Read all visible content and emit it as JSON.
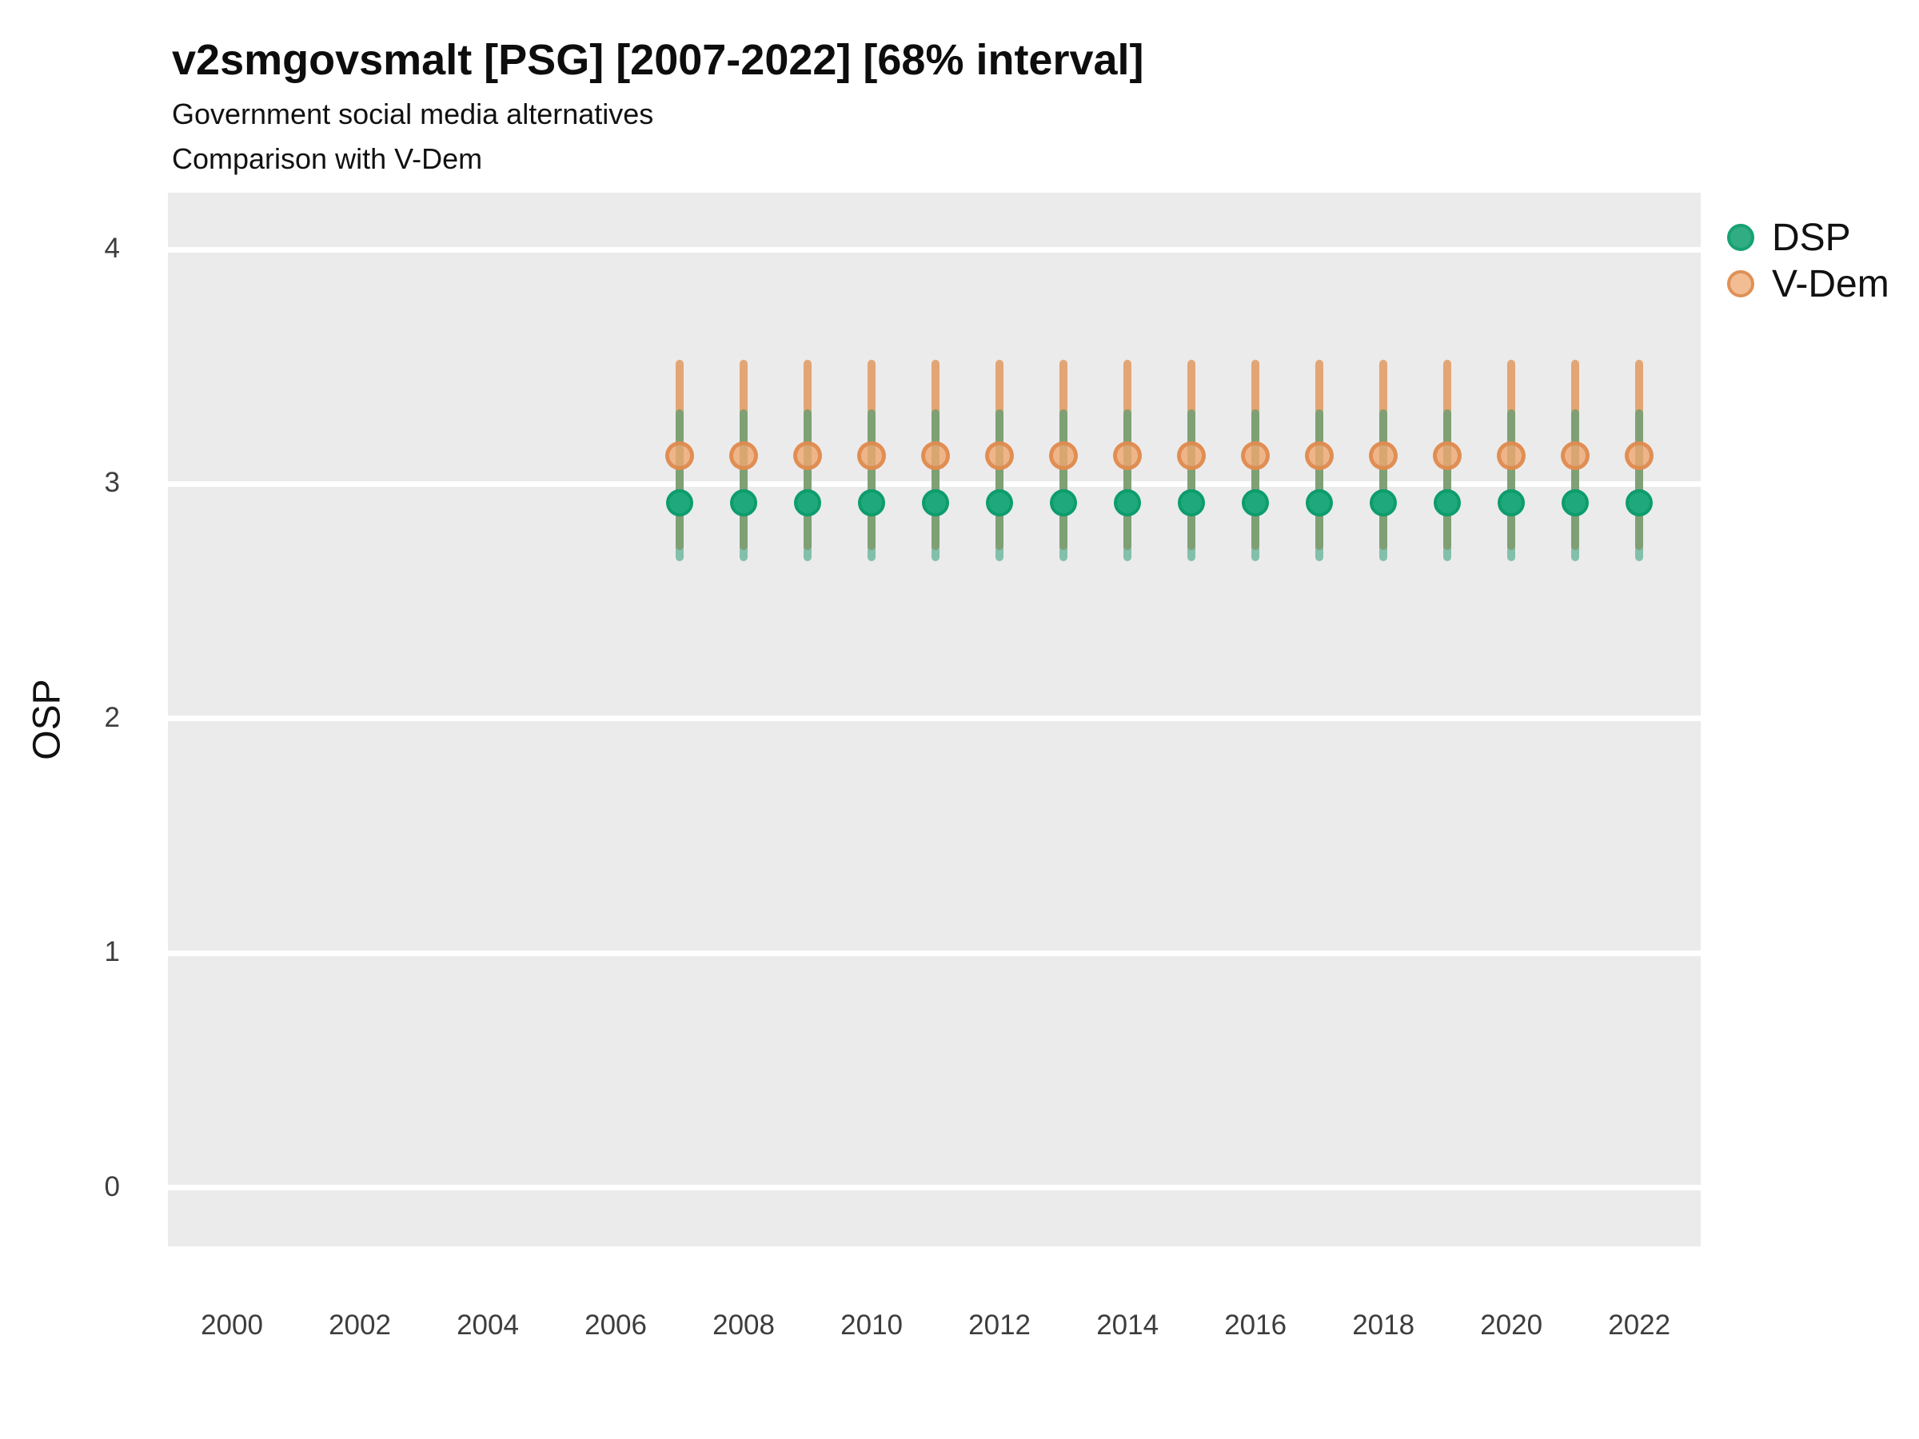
{
  "title": "v2smgovsmalt [PSG] [2007-2022] [68% interval]",
  "subtitle1": "Government social media alternatives",
  "subtitle2": "Comparison with V-Dem",
  "y_axis_label": "OSP",
  "legend": {
    "position": "right",
    "items": [
      {
        "label": "DSP",
        "fill": "#30AD82",
        "stroke": "#17A175"
      },
      {
        "label": "V-Dem",
        "fill": "#F2BD93",
        "stroke": "#DF9156"
      }
    ]
  },
  "colors": {
    "panel_bg": "#EBEBEB",
    "gridline": "#FFFFFF",
    "tick_label": "#3D3D3D",
    "dsp_bar": "#2E9C77",
    "dsp_bar_alpha": 0.55,
    "vdem_bar": "#E29D66",
    "vdem_bar_alpha": 0.9,
    "dsp_point_fill": "#1FA87C",
    "dsp_point_stroke": "#0D9C6D",
    "vdem_point_fill": "#EFA770",
    "vdem_point_fill_alpha": 0.8,
    "vdem_point_stroke": "#DE8A4E",
    "vdem_point_stroke_alpha": 0.9
  },
  "chart_data": {
    "type": "pointrange",
    "interval": "68%",
    "title": "v2smgovsmalt [PSG] [2007-2022] [68% interval]",
    "xlabel": "",
    "ylabel": "OSP",
    "x": [
      2007,
      2008,
      2009,
      2010,
      2011,
      2012,
      2013,
      2014,
      2015,
      2016,
      2017,
      2018,
      2019,
      2020,
      2021,
      2022
    ],
    "series": [
      {
        "name": "DSP",
        "points": [
          2.92,
          2.92,
          2.92,
          2.92,
          2.92,
          2.92,
          2.92,
          2.92,
          2.92,
          2.92,
          2.92,
          2.92,
          2.92,
          2.92,
          2.92,
          2.92
        ],
        "lower": [
          2.67,
          2.67,
          2.67,
          2.67,
          2.67,
          2.67,
          2.67,
          2.67,
          2.67,
          2.67,
          2.67,
          2.67,
          2.67,
          2.67,
          2.67,
          2.67
        ],
        "upper": [
          3.32,
          3.32,
          3.32,
          3.32,
          3.32,
          3.32,
          3.32,
          3.32,
          3.32,
          3.32,
          3.32,
          3.32,
          3.32,
          3.32,
          3.32,
          3.32
        ]
      },
      {
        "name": "V-Dem",
        "points": [
          3.12,
          3.12,
          3.12,
          3.12,
          3.12,
          3.12,
          3.12,
          3.12,
          3.12,
          3.12,
          3.12,
          3.12,
          3.12,
          3.12,
          3.12,
          3.12
        ],
        "lower": [
          2.72,
          2.72,
          2.72,
          2.72,
          2.72,
          2.72,
          2.72,
          2.72,
          2.72,
          2.72,
          2.72,
          2.72,
          2.72,
          2.72,
          2.72,
          2.72
        ],
        "upper": [
          3.53,
          3.53,
          3.53,
          3.53,
          3.53,
          3.53,
          3.53,
          3.53,
          3.53,
          3.53,
          3.53,
          3.53,
          3.53,
          3.53,
          3.53,
          3.53
        ]
      }
    ],
    "x_ticks": [
      2000,
      2002,
      2004,
      2006,
      2008,
      2010,
      2012,
      2014,
      2016,
      2018,
      2020,
      2022
    ],
    "y_ticks": [
      0,
      1,
      2,
      3,
      4
    ],
    "xlim": [
      1999,
      2023
    ],
    "ylim": [
      -0.25,
      4.24
    ],
    "grid": "horizontal-major-only",
    "legend_position": "right"
  }
}
